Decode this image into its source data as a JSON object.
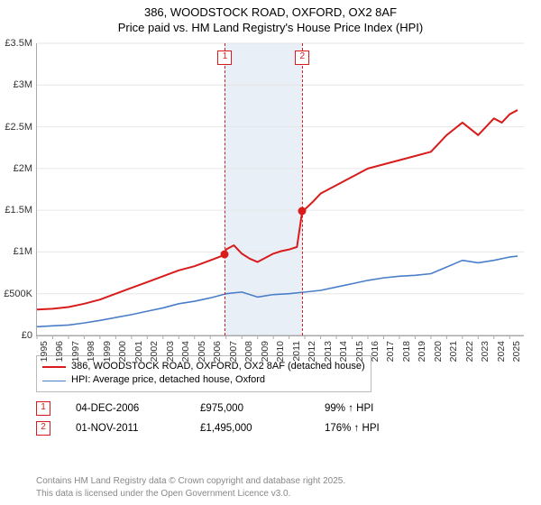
{
  "title_line1": "386, WOODSTOCK ROAD, OXFORD, OX2 8AF",
  "title_line2": "Price paid vs. HM Land Registry's House Price Index (HPI)",
  "chart": {
    "type": "line",
    "background_color": "#ffffff",
    "grid_color": "#e6e6e6",
    "axis_color": "#aaaaaa",
    "label_color": "#333333",
    "label_fontsize": 11,
    "ylim": [
      0,
      3500000
    ],
    "ytick_step": 500000,
    "ytick_labels": [
      "£0",
      "£500K",
      "£1M",
      "£1.5M",
      "£2M",
      "£2.5M",
      "£3M",
      "£3.5M"
    ],
    "xlim": [
      1995,
      2025.9
    ],
    "xtick_step": 1,
    "xtick_labels": [
      "1995",
      "1996",
      "1997",
      "1998",
      "1999",
      "2000",
      "2001",
      "2002",
      "2003",
      "2004",
      "2005",
      "2006",
      "2007",
      "2008",
      "2009",
      "2010",
      "2011",
      "2012",
      "2013",
      "2014",
      "2015",
      "2016",
      "2017",
      "2018",
      "2019",
      "2020",
      "2021",
      "2022",
      "2023",
      "2024",
      "2025"
    ],
    "band": {
      "start": 2006.93,
      "end": 2011.84,
      "fill": "#b9cce6",
      "opacity": 0.32
    },
    "series": [
      {
        "name": "price_paid",
        "label": "386, WOODSTOCK ROAD, OXFORD, OX2 8AF (detached house)",
        "color": "#d81c1c",
        "line_width": 2,
        "x": [
          1995,
          1996,
          1997,
          1998,
          1999,
          2000,
          2001,
          2002,
          2003,
          2004,
          2005,
          2006,
          2006.7,
          2006.93,
          2007,
          2007.5,
          2008,
          2008.5,
          2009,
          2009.5,
          2010,
          2010.5,
          2011,
          2011.5,
          2011.84,
          2012,
          2012.5,
          2013,
          2014,
          2015,
          2016,
          2017,
          2018,
          2019,
          2020,
          2021,
          2022,
          2023,
          2023.5,
          2024,
          2024.5,
          2025,
          2025.5
        ],
        "y": [
          310000,
          320000,
          340000,
          380000,
          430000,
          500000,
          570000,
          640000,
          710000,
          780000,
          830000,
          900000,
          950000,
          975000,
          1030000,
          1080000,
          980000,
          920000,
          880000,
          930000,
          980000,
          1010000,
          1030000,
          1060000,
          1495000,
          1510000,
          1600000,
          1700000,
          1800000,
          1900000,
          2000000,
          2050000,
          2100000,
          2150000,
          2200000,
          2400000,
          2550000,
          2400000,
          2500000,
          2600000,
          2550000,
          2650000,
          2700000
        ]
      },
      {
        "name": "hpi",
        "label": "HPI: Average price, detached house, Oxford",
        "color": "#4a7ec8",
        "line_width": 1.6,
        "x": [
          1995,
          1996,
          1997,
          1998,
          1999,
          2000,
          2001,
          2002,
          2003,
          2004,
          2005,
          2006,
          2007,
          2008,
          2009,
          2010,
          2011,
          2012,
          2013,
          2014,
          2015,
          2016,
          2017,
          2018,
          2019,
          2020,
          2021,
          2022,
          2023,
          2024,
          2025,
          2025.5
        ],
        "y": [
          105000,
          115000,
          125000,
          150000,
          180000,
          215000,
          250000,
          290000,
          330000,
          380000,
          410000,
          450000,
          500000,
          520000,
          460000,
          490000,
          500000,
          520000,
          540000,
          580000,
          620000,
          660000,
          690000,
          710000,
          720000,
          740000,
          820000,
          900000,
          870000,
          900000,
          940000,
          950000
        ]
      }
    ],
    "markers": [
      {
        "n": "1",
        "x": 2006.93,
        "y": 975000,
        "color": "#d81c1c",
        "line_dash": "4,3"
      },
      {
        "n": "2",
        "x": 2011.84,
        "y": 1495000,
        "color": "#d81c1c",
        "line_dash": "4,3"
      }
    ]
  },
  "legend": {
    "border_color": "#bbbbbb",
    "items": [
      {
        "color": "#d81c1c",
        "width": 2,
        "label": "386, WOODSTOCK ROAD, OXFORD, OX2 8AF (detached house)"
      },
      {
        "color": "#4a7ec8",
        "width": 1.6,
        "label": "HPI: Average price, detached house, Oxford"
      }
    ]
  },
  "table": {
    "rows": [
      {
        "n": "1",
        "color": "#d81c1c",
        "date": "04-DEC-2006",
        "price": "£975,000",
        "hpi": "99% ↑ HPI"
      },
      {
        "n": "2",
        "color": "#d81c1c",
        "date": "01-NOV-2011",
        "price": "£1,495,000",
        "hpi": "176% ↑ HPI"
      }
    ]
  },
  "footer_line1": "Contains HM Land Registry data © Crown copyright and database right 2025.",
  "footer_line2": "This data is licensed under the Open Government Licence v3.0."
}
